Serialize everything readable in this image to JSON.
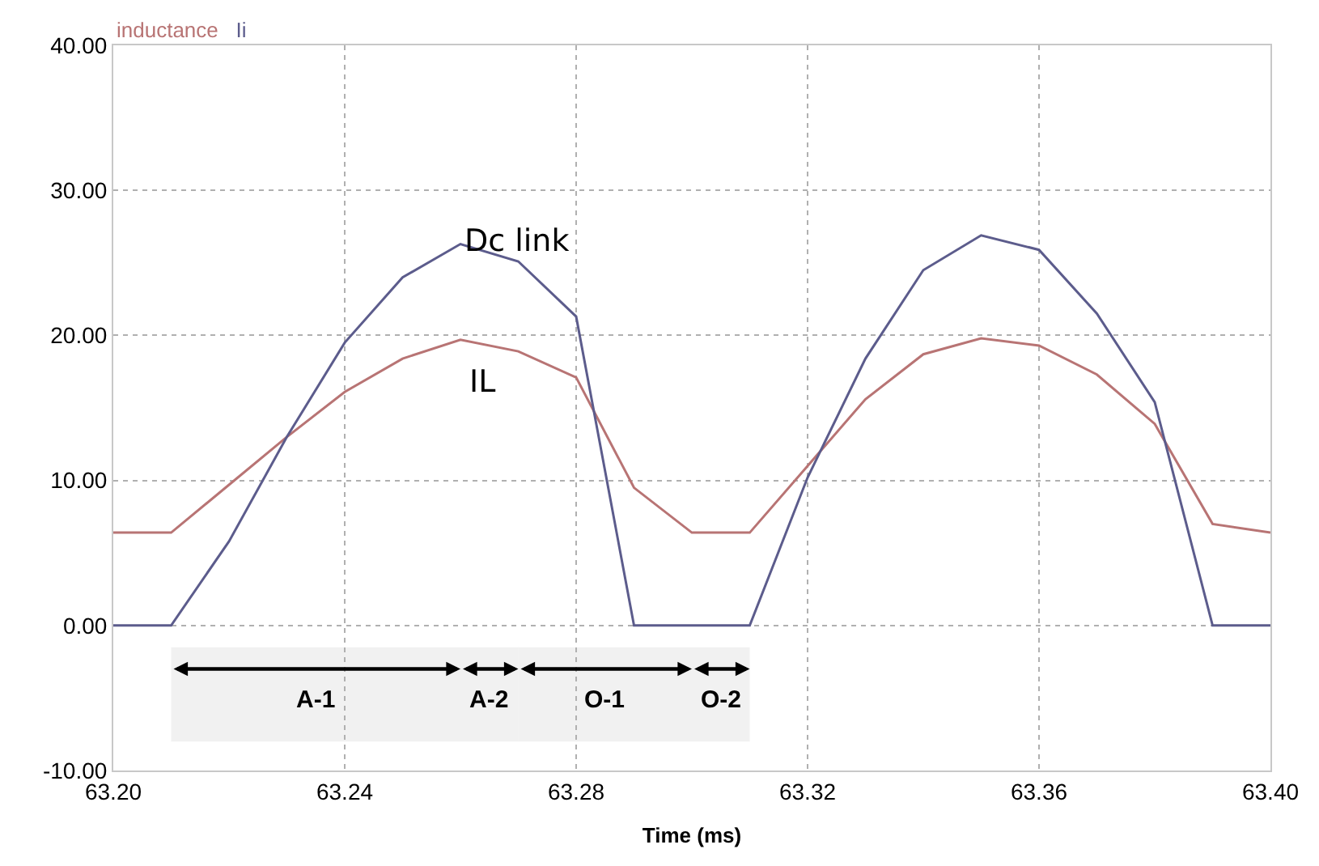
{
  "chart_data": {
    "type": "line",
    "xlabel": "Time (ms)",
    "x": [
      63.2,
      63.21,
      63.22,
      63.23,
      63.24,
      63.25,
      63.26,
      63.27,
      63.28,
      63.29,
      63.3,
      63.31,
      63.32,
      63.33,
      63.34,
      63.35,
      63.36,
      63.37,
      63.38,
      63.39,
      63.4
    ],
    "series": [
      {
        "name": "inductance",
        "color": "#b87474",
        "values": [
          6.4,
          6.4,
          9.7,
          13.0,
          16.1,
          18.4,
          19.7,
          18.9,
          17.1,
          9.5,
          6.4,
          6.4,
          11.0,
          15.6,
          18.7,
          19.8,
          19.3,
          17.3,
          13.9,
          7.0,
          6.4
        ]
      },
      {
        "name": "Ii",
        "color": "#5c5c8c",
        "values": [
          0,
          0,
          5.8,
          13.0,
          19.5,
          24.0,
          26.3,
          25.1,
          21.3,
          0,
          0,
          0,
          10.2,
          18.4,
          24.5,
          26.9,
          25.9,
          21.5,
          15.4,
          0,
          0
        ]
      }
    ],
    "xlim": [
      63.2,
      63.4
    ],
    "xticks": [
      {
        "value": 63.2,
        "label": "63.20"
      },
      63.24,
      63.28,
      63.32,
      63.36,
      {
        "value": 63.4,
        "label": "63.40"
      }
    ],
    "ylim": [
      -10,
      40
    ],
    "yticks": [
      {
        "value": -10,
        "label": "-10.00"
      },
      {
        "value": 0,
        "label": "0.00"
      },
      {
        "value": 10,
        "label": "10.00"
      },
      {
        "value": 20,
        "label": "20.00"
      },
      {
        "value": 30,
        "label": "30.00"
      },
      {
        "value": 40,
        "label": "40.00"
      }
    ],
    "grid": true,
    "legend": "top left",
    "marker": "none",
    "line_style": "solid",
    "annotations": [
      "Dc link",
      "IL"
    ],
    "bands": [
      {
        "axis": "x",
        "from": 63.21,
        "to": 63.26,
        "label": "A-1"
      },
      {
        "axis": "x",
        "from": 63.26,
        "to": 63.27,
        "label": "A-2"
      },
      {
        "axis": "x",
        "from": 63.27,
        "to": 63.3,
        "label": "O-1"
      },
      {
        "axis": "x",
        "from": 63.3,
        "to": 63.31,
        "label": "O-2"
      }
    ]
  }
}
